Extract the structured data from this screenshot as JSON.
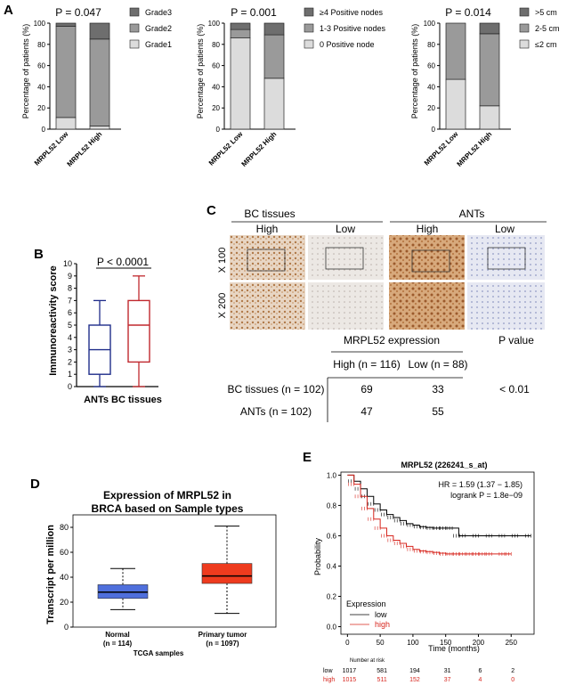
{
  "panel_letters": {
    "a": "A",
    "b": "B",
    "c": "C",
    "d": "D",
    "e": "E"
  },
  "colors": {
    "grade3": "#6e6e6e",
    "grade2": "#9a9a9a",
    "grade1": "#dcdcdc",
    "ants": "#1f2d8a",
    "bc": "#c0282e",
    "normal": "#4f6fdc",
    "tumor": "#ee3b1e",
    "km_low": "#000000",
    "km_high": "#d7261e"
  },
  "chart_data": [
    {
      "id": "A1",
      "type": "bar",
      "stacked": true,
      "title": "P = 0.047",
      "ylabel": "Percentage of patients (%)",
      "ylim": [
        0,
        100
      ],
      "yticks": [
        "0",
        "20",
        "40",
        "60",
        "80",
        "100"
      ],
      "categories": [
        "MRPL52 Low",
        "MRPL52 High"
      ],
      "series": [
        {
          "name": "Grade1",
          "values": [
            11,
            3
          ]
        },
        {
          "name": "Grade2",
          "values": [
            86,
            82
          ]
        },
        {
          "name": "Grade3",
          "values": [
            3,
            15
          ]
        }
      ],
      "legend": [
        "Grade3",
        "Grade2",
        "Grade1"
      ]
    },
    {
      "id": "A2",
      "type": "bar",
      "stacked": true,
      "title": "P = 0.001",
      "ylabel": "Percentage of patients (%)",
      "ylim": [
        0,
        100
      ],
      "yticks": [
        "0",
        "20",
        "40",
        "60",
        "80",
        "100"
      ],
      "categories": [
        "MRPL52 Low",
        "MRPL52 High"
      ],
      "series": [
        {
          "name": "0 Positive node",
          "values": [
            86,
            48
          ]
        },
        {
          "name": "1-3 Positive nodes",
          "values": [
            8,
            41
          ]
        },
        {
          "name": "≥4 Positive nodes",
          "values": [
            6,
            11
          ]
        }
      ],
      "legend": [
        "≥4 Positive nodes",
        "1-3 Positive nodes",
        "0 Positive node"
      ]
    },
    {
      "id": "A3",
      "type": "bar",
      "stacked": true,
      "title": "P = 0.014",
      "ylabel": "Percentage of patients (%)",
      "ylim": [
        0,
        100
      ],
      "yticks": [
        "0",
        "20",
        "40",
        "60",
        "80",
        "100"
      ],
      "categories": [
        "MRPL52 Low",
        "MRPL52 High"
      ],
      "series": [
        {
          "name": "≤2 cm",
          "values": [
            47,
            22
          ]
        },
        {
          "name": "2-5 cm",
          "values": [
            53,
            68
          ]
        },
        {
          "name": ">5 cm",
          "values": [
            0,
            10
          ]
        }
      ],
      "legend": [
        ">5 cm",
        "2-5 cm",
        "≤2 cm"
      ]
    },
    {
      "id": "B",
      "type": "box",
      "ylabel": "Immunoreactivity score",
      "ylim": [
        0,
        10
      ],
      "yticks": [
        "0",
        "1",
        "2",
        "3",
        "4",
        "5",
        "6",
        "7",
        "8",
        "9",
        "10"
      ],
      "categories": [
        "ANTs",
        "BC tissues"
      ],
      "xlabel": "ANTs BC tissues",
      "annotation": "P < 0.0001",
      "boxes": [
        {
          "name": "ANTs",
          "min": 0,
          "q1": 1,
          "median": 3,
          "q3": 5,
          "max": 7
        },
        {
          "name": "BC tissues",
          "min": 0,
          "q1": 2,
          "median": 5,
          "q3": 7,
          "max": 9
        }
      ]
    },
    {
      "id": "D",
      "type": "box",
      "title": "Expression of MRPL52 in BRCA based on Sample types",
      "title_lines": [
        "Expression of MRPL52 in",
        "BRCA based on Sample types"
      ],
      "ylabel": "Transcript per million",
      "xlabel": "TCGA samples",
      "ylim": [
        0,
        90
      ],
      "yticks": [
        "0",
        "20",
        "40",
        "60",
        "80"
      ],
      "categories": [
        "Normal",
        "Primary tumor"
      ],
      "counts": [
        "(n = 114)",
        "(n = 1097)"
      ],
      "boxes": [
        {
          "name": "Normal",
          "min": 14,
          "q1": 23,
          "median": 28,
          "q3": 34,
          "max": 47
        },
        {
          "name": "Primary tumor",
          "min": 11,
          "q1": 35,
          "median": 41,
          "q3": 51,
          "max": 81
        }
      ]
    },
    {
      "id": "E",
      "type": "line",
      "title": "MRPL52 (226241_s_at)",
      "hr": "HR = 1.59 (1.37 − 1.85)",
      "logrank": "logrank P = 1.8e−09",
      "ylabel": "Probability",
      "xlabel": "Time (months)",
      "xlim": [
        -10,
        285
      ],
      "ylim": [
        -0.05,
        1.02
      ],
      "xticks": [
        "0",
        "50",
        "100",
        "150",
        "200",
        "250"
      ],
      "yticks": [
        "0.0",
        "0.2",
        "0.4",
        "0.6",
        "0.8",
        "1.0"
      ],
      "legend_title": "Expression",
      "series": [
        {
          "name": "low",
          "x": [
            0,
            10,
            20,
            30,
            40,
            50,
            60,
            70,
            80,
            90,
            100,
            110,
            120,
            130,
            140,
            150,
            160,
            170,
            180,
            200,
            220,
            240,
            260,
            280
          ],
          "y": [
            1.0,
            0.96,
            0.91,
            0.86,
            0.81,
            0.77,
            0.74,
            0.72,
            0.7,
            0.68,
            0.67,
            0.66,
            0.655,
            0.65,
            0.65,
            0.65,
            0.65,
            0.6,
            0.6,
            0.6,
            0.6,
            0.6,
            0.6,
            0.6
          ]
        },
        {
          "name": "high",
          "x": [
            0,
            10,
            20,
            30,
            40,
            50,
            60,
            70,
            80,
            90,
            100,
            110,
            120,
            130,
            140,
            150,
            160,
            170,
            180,
            190,
            200,
            210,
            220,
            240,
            250
          ],
          "y": [
            1.0,
            0.94,
            0.86,
            0.78,
            0.71,
            0.65,
            0.6,
            0.57,
            0.55,
            0.53,
            0.51,
            0.5,
            0.495,
            0.49,
            0.485,
            0.48,
            0.48,
            0.48,
            0.48,
            0.48,
            0.48,
            0.48,
            0.48,
            0.48,
            0.48
          ]
        }
      ],
      "risk_label": "Number at risk",
      "risk": [
        {
          "name": "low",
          "values": [
            "1017",
            "581",
            "194",
            "31",
            "6",
            "2"
          ]
        },
        {
          "name": "high",
          "values": [
            "1015",
            "511",
            "152",
            "37",
            "4",
            "0"
          ]
        }
      ]
    }
  ],
  "ihc": {
    "col_groups": [
      "BC tissues",
      "ANTs"
    ],
    "cols": [
      "High",
      "Low",
      "High",
      "Low"
    ],
    "rows": [
      "X 100",
      "X 200"
    ]
  },
  "ihc_table": {
    "title": "MRPL52 expression",
    "pvalue_header": "P value",
    "col_headers": [
      "High (n = 116)",
      "Low (n = 88)"
    ],
    "rows": [
      {
        "label": "BC tissues (n = 102)",
        "values": [
          "69",
          "33"
        ],
        "p": "< 0.01"
      },
      {
        "label": "ANTs (n = 102)",
        "values": [
          "47",
          "55"
        ],
        "p": ""
      }
    ]
  }
}
